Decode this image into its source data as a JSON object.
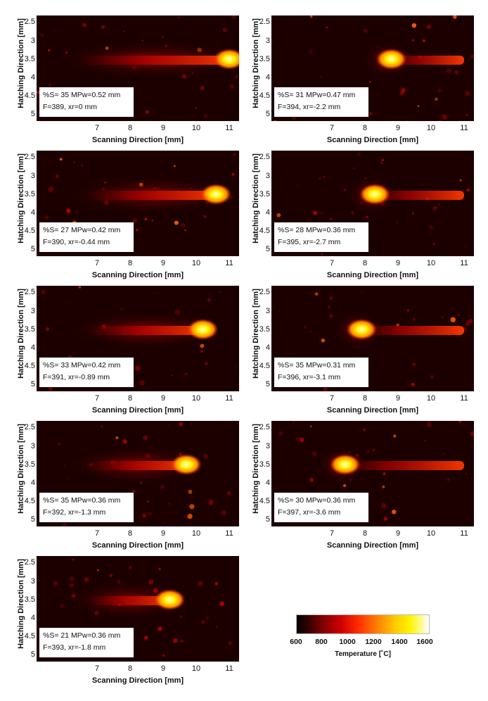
{
  "axes": {
    "y_label": "Hatching Direction [mm]",
    "x_label": "Scanning Direction [mm]",
    "y_ticks": [
      "2.5",
      "3",
      "3.5",
      "4",
      "4.5",
      "5"
    ],
    "x_ticks": [
      "7",
      "8",
      "9",
      "10",
      "11"
    ]
  },
  "panels": [
    {
      "line1": "%S= 35 MPw=0.52 mm",
      "line2": "F=389, xr=0 mm",
      "hot_x_mm": 11.0,
      "tail_start_mm": 6.5
    },
    {
      "line1": "%S= 31 MPw=0.47 mm",
      "line2": "F=394, xr=-2.2 mm",
      "hot_x_mm": 8.8,
      "tail_start_mm": 8.6
    },
    {
      "line1": "%S= 27 MPw=0.42 mm",
      "line2": "F=390, xr=-0.44 mm",
      "hot_x_mm": 10.6,
      "tail_start_mm": 6.8
    },
    {
      "line1": "%S= 28 MPw=0.36 mm",
      "line2": "F=395, xr=-2.7 mm",
      "hot_x_mm": 8.3,
      "tail_start_mm": 8.1
    },
    {
      "line1": "%S= 33 MPw=0.42 mm",
      "line2": "F=391, xr=-0.89 mm",
      "hot_x_mm": 10.2,
      "tail_start_mm": 6.8
    },
    {
      "line1": "%S= 35 MPw=0.31 mm",
      "line2": "F=396, xr=-3.1 mm",
      "hot_x_mm": 7.9,
      "tail_start_mm": 7.7
    },
    {
      "line1": "%S= 35 MPw=0.36 mm",
      "line2": "F=392, xr=-1.3 mm",
      "hot_x_mm": 9.7,
      "tail_start_mm": 6.8
    },
    {
      "line1": "%S= 30 MPw=0.36 mm",
      "line2": "F=397, xr=-3.6 mm",
      "hot_x_mm": 7.4,
      "tail_start_mm": 7.2
    },
    {
      "line1": "%S= 21 MPw=0.36 mm",
      "line2": "F=393, xr=-1.8 mm",
      "hot_x_mm": 9.2,
      "tail_start_mm": 6.8
    }
  ],
  "colorbar": {
    "ticks": [
      "600",
      "800",
      "1000",
      "1200",
      "1400",
      "1600"
    ],
    "label": "Temperature [˚C]"
  }
}
